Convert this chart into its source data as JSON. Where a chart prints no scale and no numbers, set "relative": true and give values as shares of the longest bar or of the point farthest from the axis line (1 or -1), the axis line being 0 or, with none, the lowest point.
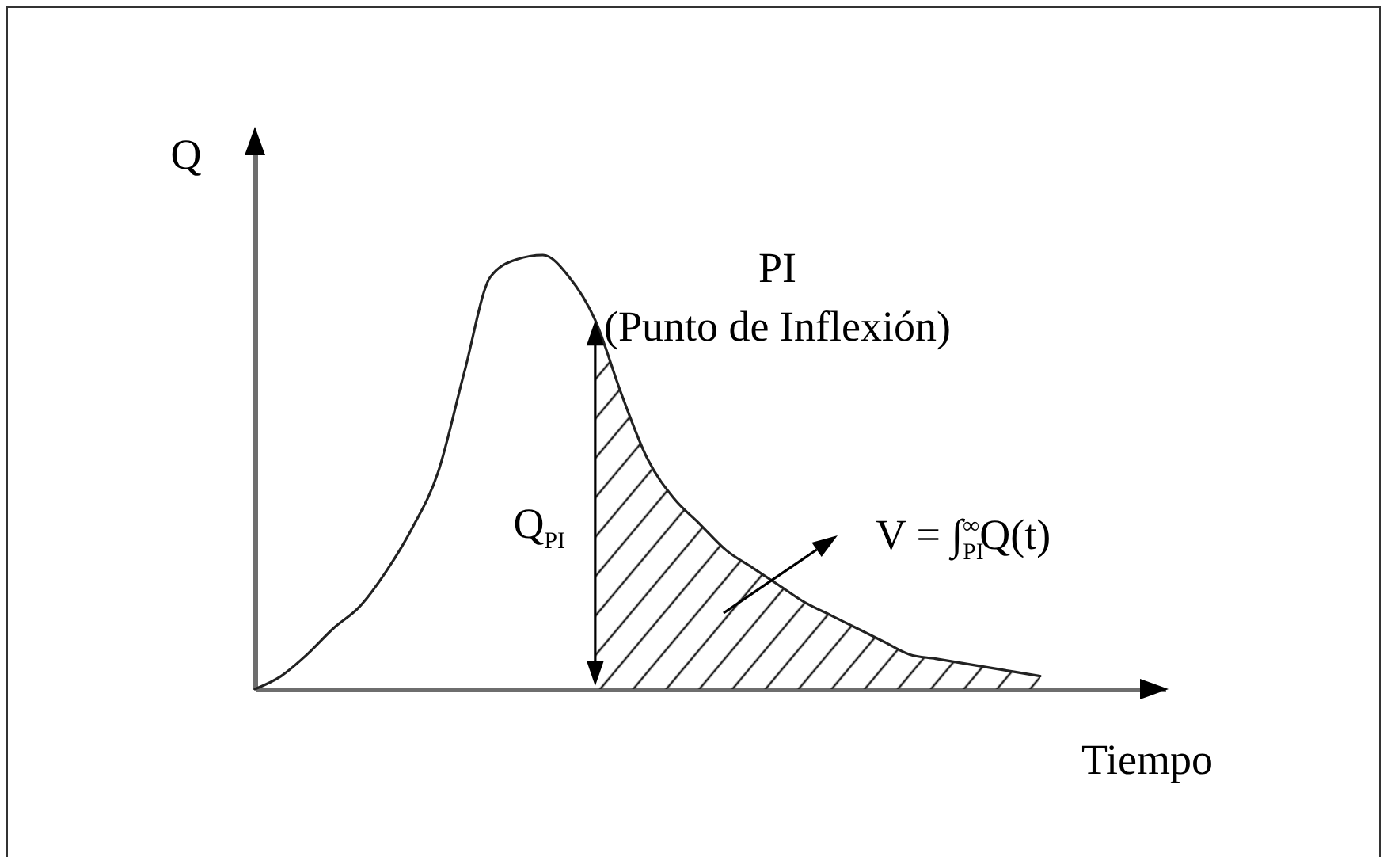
{
  "chart_data": {
    "type": "line",
    "relative": true,
    "xlabel": "Tiempo",
    "ylabel": "Q",
    "categories": [
      null,
      null,
      null,
      null,
      null,
      null,
      null,
      null,
      null,
      null,
      null,
      null,
      null,
      null,
      null,
      null,
      null,
      null,
      null,
      null,
      null,
      null,
      null,
      null,
      null,
      null,
      null,
      null,
      null,
      null,
      null
    ],
    "series": [
      {
        "color": "#222222",
        "values": [
          0,
          0.03,
          0.08,
          0.14,
          0.19,
          0.27,
          0.37,
          0.5,
          0.73,
          0.95,
          0.99,
          1,
          0.95,
          0.85,
          0.68,
          0.53,
          0.44,
          0.38,
          0.32,
          0.28,
          0.24,
          0.2,
          0.17,
          0.14,
          0.11,
          0.08,
          0.07,
          0.06,
          0.05,
          0.04,
          0.03
        ]
      },
      {
        "type": "area",
        "color": "#222222",
        "values": [
          null,
          null,
          null,
          null,
          null,
          null,
          null,
          null,
          null,
          null,
          null,
          null,
          null,
          0.85,
          0.68,
          0.53,
          0.44,
          0.38,
          0.32,
          0.28,
          0.24,
          0.2,
          0.17,
          0.14,
          0.11,
          0.08,
          0.07,
          0.06,
          0.05,
          0.04,
          0.03
        ]
      }
    ],
    "annotations": [
      "PI\n(Punto de Inflexión)",
      "Q$_{PI}$",
      "V = ∫$_{PI}$$^{∞}$Q(t)"
    ]
  }
}
